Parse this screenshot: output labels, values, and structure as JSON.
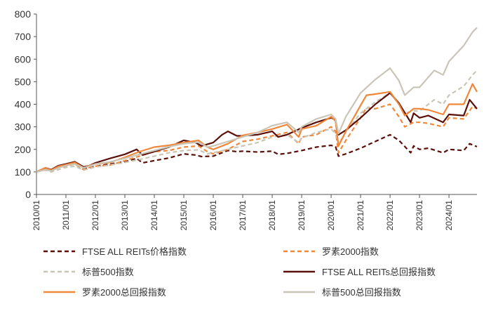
{
  "chart_data": {
    "type": "line",
    "title": "",
    "xlabel": "",
    "ylabel": "",
    "ylim": [
      0,
      800
    ],
    "yticks": [
      0,
      100,
      200,
      300,
      400,
      500,
      600,
      700,
      800
    ],
    "xlim": [
      2010.0,
      2024.95
    ],
    "xticks": [
      "2010/01",
      "2011/01",
      "2012/01",
      "2013/01",
      "2014/01",
      "2015/01",
      "2016/01",
      "2017/01",
      "2018/01",
      "2019/01",
      "2020/01",
      "2021/01",
      "2022/01",
      "2023/01",
      "2024/01"
    ],
    "grid": false,
    "legend_position": "bottom",
    "series": [
      {
        "name": "FTSE ALL REITs价格指数",
        "color": "#5b0f0a",
        "style": "dashed",
        "x": [
          2010.0,
          2010.3,
          2010.5,
          2010.75,
          2011.0,
          2011.3,
          2011.6,
          2011.8,
          2012.0,
          2012.5,
          2013.0,
          2013.4,
          2013.6,
          2014.0,
          2014.5,
          2015.0,
          2015.4,
          2015.6,
          2016.0,
          2016.5,
          2016.8,
          2017.0,
          2017.5,
          2018.0,
          2018.2,
          2018.5,
          2019.0,
          2019.5,
          2020.0,
          2020.15,
          2020.25,
          2020.5,
          2021.0,
          2021.5,
          2022.0,
          2022.3,
          2022.7,
          2022.8,
          2023.0,
          2023.3,
          2023.8,
          2024.0,
          2024.5,
          2024.7,
          2024.95
        ],
        "y": [
          100,
          115,
          108,
          122,
          128,
          135,
          115,
          118,
          125,
          135,
          145,
          160,
          140,
          150,
          162,
          180,
          175,
          168,
          170,
          195,
          190,
          192,
          188,
          192,
          178,
          182,
          195,
          210,
          218,
          212,
          170,
          180,
          205,
          235,
          265,
          240,
          185,
          215,
          200,
          205,
          185,
          200,
          195,
          225,
          212
        ]
      },
      {
        "name": "罗素2000指数",
        "color": "#f0883c",
        "style": "dashed",
        "x": [
          2010.0,
          2010.3,
          2010.5,
          2010.75,
          2011.0,
          2011.3,
          2011.6,
          2011.8,
          2012.0,
          2012.5,
          2013.0,
          2013.5,
          2014.0,
          2014.5,
          2015.0,
          2015.5,
          2015.8,
          2016.0,
          2016.5,
          2017.0,
          2017.5,
          2018.0,
          2018.5,
          2018.9,
          2019.0,
          2019.5,
          2020.0,
          2020.15,
          2020.25,
          2020.5,
          2021.0,
          2021.2,
          2021.5,
          2022.0,
          2022.3,
          2022.5,
          2022.8,
          2023.0,
          2023.3,
          2023.8,
          2024.0,
          2024.5,
          2024.8,
          2024.95
        ],
        "y": [
          100,
          115,
          105,
          120,
          125,
          135,
          110,
          120,
          125,
          130,
          150,
          170,
          190,
          195,
          210,
          215,
          190,
          180,
          200,
          235,
          245,
          260,
          275,
          225,
          255,
          265,
          300,
          280,
          185,
          240,
          340,
          385,
          380,
          400,
          345,
          300,
          320,
          320,
          315,
          300,
          340,
          335,
          390,
          380
        ]
      },
      {
        "name": "标普500指数",
        "color": "#c9c6b8",
        "style": "dashed",
        "x": [
          2010.0,
          2010.3,
          2010.5,
          2010.75,
          2011.0,
          2011.3,
          2011.6,
          2011.8,
          2012.0,
          2012.5,
          2013.0,
          2013.5,
          2014.0,
          2014.5,
          2015.0,
          2015.5,
          2015.8,
          2016.0,
          2016.5,
          2017.0,
          2017.5,
          2018.0,
          2018.5,
          2018.9,
          2019.0,
          2019.5,
          2020.0,
          2020.15,
          2020.25,
          2020.5,
          2021.0,
          2021.5,
          2022.0,
          2022.3,
          2022.5,
          2022.8,
          2023.0,
          2023.5,
          2023.8,
          2024.0,
          2024.5,
          2024.8,
          2024.95
        ],
        "y": [
          100,
          108,
          100,
          110,
          120,
          125,
          108,
          115,
          122,
          130,
          142,
          155,
          170,
          185,
          195,
          198,
          180,
          185,
          200,
          215,
          230,
          255,
          265,
          230,
          250,
          275,
          290,
          270,
          220,
          280,
          360,
          410,
          450,
          400,
          360,
          370,
          370,
          420,
          400,
          440,
          480,
          530,
          550
        ]
      },
      {
        "name": "FTSE ALL REITs总回报指数",
        "color": "#5b0f0a",
        "style": "solid",
        "x": [
          2010.0,
          2010.3,
          2010.5,
          2010.75,
          2011.0,
          2011.3,
          2011.6,
          2011.8,
          2012.0,
          2012.5,
          2013.0,
          2013.4,
          2013.6,
          2014.0,
          2014.5,
          2015.0,
          2015.4,
          2015.6,
          2016.0,
          2016.3,
          2016.5,
          2016.8,
          2017.0,
          2017.5,
          2018.0,
          2018.2,
          2018.5,
          2019.0,
          2019.5,
          2020.0,
          2020.15,
          2020.25,
          2020.5,
          2021.0,
          2021.5,
          2022.0,
          2022.3,
          2022.7,
          2022.8,
          2023.0,
          2023.3,
          2023.8,
          2024.0,
          2024.5,
          2024.7,
          2024.95
        ],
        "y": [
          100,
          118,
          110,
          128,
          135,
          145,
          122,
          128,
          140,
          160,
          178,
          200,
          175,
          190,
          210,
          240,
          230,
          215,
          230,
          265,
          280,
          260,
          260,
          265,
          280,
          255,
          265,
          295,
          320,
          340,
          330,
          265,
          285,
          340,
          400,
          450,
          405,
          320,
          360,
          340,
          350,
          320,
          355,
          350,
          420,
          380
        ]
      },
      {
        "name": "罗素2000总回报指数",
        "color": "#f0883c",
        "style": "solid",
        "x": [
          2010.0,
          2010.3,
          2010.5,
          2010.75,
          2011.0,
          2011.3,
          2011.6,
          2011.8,
          2012.0,
          2012.5,
          2013.0,
          2013.5,
          2014.0,
          2014.5,
          2015.0,
          2015.5,
          2015.8,
          2016.0,
          2016.5,
          2017.0,
          2017.5,
          2018.0,
          2018.5,
          2018.9,
          2019.0,
          2019.5,
          2020.0,
          2020.15,
          2020.25,
          2020.5,
          2021.0,
          2021.2,
          2021.5,
          2022.0,
          2022.3,
          2022.5,
          2022.8,
          2023.0,
          2023.3,
          2023.8,
          2024.0,
          2024.5,
          2024.8,
          2024.95
        ],
        "y": [
          100,
          118,
          108,
          125,
          132,
          142,
          118,
          128,
          135,
          142,
          165,
          190,
          210,
          218,
          230,
          240,
          210,
          200,
          225,
          262,
          275,
          290,
          310,
          255,
          290,
          305,
          345,
          325,
          215,
          280,
          395,
          440,
          445,
          455,
          400,
          350,
          380,
          380,
          375,
          355,
          400,
          400,
          490,
          455
        ]
      },
      {
        "name": "标普500总回报指数",
        "color": "#c9c6b8",
        "style": "solid",
        "x": [
          2010.0,
          2010.3,
          2010.5,
          2010.75,
          2011.0,
          2011.3,
          2011.6,
          2011.8,
          2012.0,
          2012.5,
          2013.0,
          2013.5,
          2014.0,
          2014.5,
          2015.0,
          2015.5,
          2015.8,
          2016.0,
          2016.5,
          2017.0,
          2017.5,
          2018.0,
          2018.5,
          2018.9,
          2019.0,
          2019.5,
          2020.0,
          2020.15,
          2020.25,
          2020.5,
          2021.0,
          2021.5,
          2022.0,
          2022.3,
          2022.5,
          2022.8,
          2023.0,
          2023.5,
          2023.8,
          2024.0,
          2024.5,
          2024.8,
          2024.95
        ],
        "y": [
          100,
          110,
          104,
          118,
          128,
          135,
          118,
          125,
          135,
          145,
          160,
          178,
          195,
          212,
          225,
          232,
          210,
          215,
          235,
          255,
          275,
          305,
          320,
          275,
          300,
          335,
          355,
          335,
          270,
          345,
          450,
          510,
          560,
          505,
          440,
          475,
          475,
          550,
          530,
          590,
          660,
          720,
          740
        ]
      }
    ]
  }
}
